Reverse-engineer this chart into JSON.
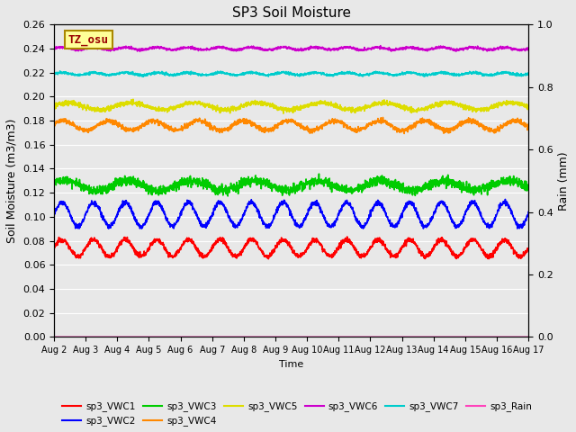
{
  "title": "SP3 Soil Moisture",
  "xlabel": "Time",
  "ylabel_left": "Soil Moisture (m3/m3)",
  "ylabel_right": "Rain (mm)",
  "x_ticks": [
    "Aug 2",
    "Aug 3",
    "Aug 4",
    "Aug 5",
    "Aug 6",
    "Aug 7",
    "Aug 8",
    "Aug 9",
    "Aug 10",
    "Aug 11",
    "Aug 12",
    "Aug 13",
    "Aug 14",
    "Aug 15",
    "Aug 16",
    "Aug 17"
  ],
  "ylim_left": [
    0.0,
    0.26
  ],
  "ylim_right": [
    0.0,
    1.0
  ],
  "yticks_left": [
    0.0,
    0.02,
    0.04,
    0.06,
    0.08,
    0.1,
    0.12,
    0.14,
    0.16,
    0.18,
    0.2,
    0.22,
    0.24,
    0.26
  ],
  "yticks_right_vals": [
    0.0,
    0.2,
    0.4,
    0.6,
    0.8,
    1.0
  ],
  "yticks_right_labels": [
    "0.0",
    "0.2",
    "0.4",
    "0.6",
    "0.8",
    "1.0"
  ],
  "series": {
    "sp3_VWC1": {
      "color": "#ff0000",
      "mean": 0.074,
      "amplitude": 0.007,
      "freq": 1.0,
      "phase": 0.0,
      "noise": 0.001
    },
    "sp3_VWC2": {
      "color": "#0000ff",
      "mean": 0.102,
      "amplitude": 0.01,
      "freq": 1.0,
      "phase": 0.0,
      "noise": 0.001
    },
    "sp3_VWC3": {
      "color": "#00cc00",
      "mean": 0.126,
      "amplitude": 0.004,
      "freq": 0.5,
      "phase": 0.5,
      "noise": 0.002
    },
    "sp3_VWC4": {
      "color": "#ff8800",
      "mean": 0.176,
      "amplitude": 0.004,
      "freq": 0.7,
      "phase": 0.3,
      "noise": 0.001
    },
    "sp3_VWC5": {
      "color": "#dddd00",
      "mean": 0.192,
      "amplitude": 0.003,
      "freq": 0.5,
      "phase": 0.2,
      "noise": 0.001
    },
    "sp3_VWC6": {
      "color": "#cc00cc",
      "mean": 0.24,
      "amplitude": 0.001,
      "freq": 1.0,
      "phase": 0.0,
      "noise": 0.0005
    },
    "sp3_VWC7": {
      "color": "#00cccc",
      "mean": 0.219,
      "amplitude": 0.001,
      "freq": 1.0,
      "phase": 0.0,
      "noise": 0.0005
    },
    "sp3_Rain": {
      "color": "#ff44bb",
      "mean": 0.0,
      "amplitude": 0.0,
      "freq": 0.0,
      "phase": 0.0,
      "noise": 0.0
    }
  },
  "legend_order": [
    "sp3_VWC1",
    "sp3_VWC2",
    "sp3_VWC3",
    "sp3_VWC4",
    "sp3_VWC5",
    "sp3_VWC6",
    "sp3_VWC7",
    "sp3_Rain"
  ],
  "tz_label": "TZ_osu",
  "tz_bg": "#ffff99",
  "tz_border": "#aa8800",
  "tz_text_color": "#990000",
  "bg_color": "#e8e8e8",
  "grid_color": "#ffffff",
  "fig_facecolor": "#e8e8e8",
  "n_points": 2160,
  "linewidth": 1.2
}
